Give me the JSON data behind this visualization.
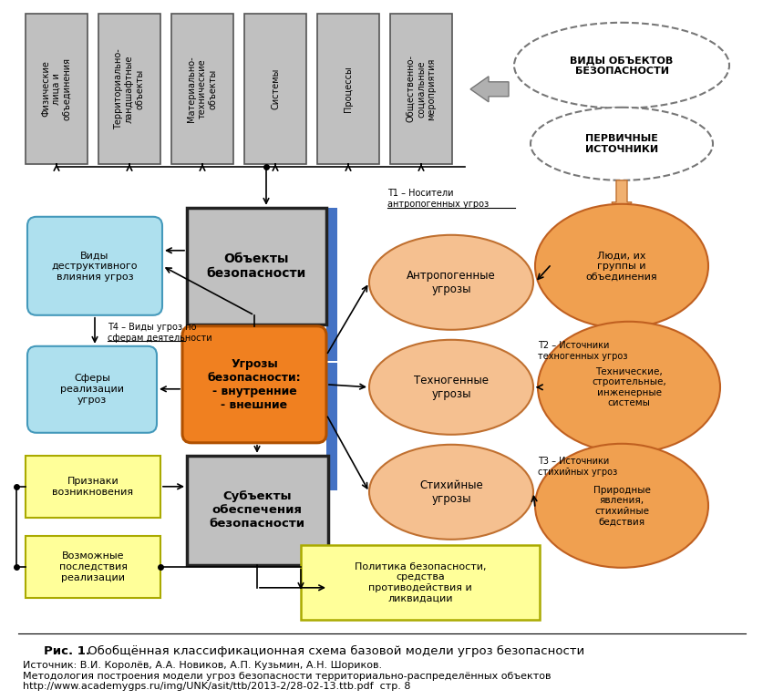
{
  "title_bold": "Рис. 1.",
  "title_rest": " Обобщённая классификационная схема базовой модели угроз безопасности",
  "source_text": "Источник: В.И. Королёв, А.А. Новиков, А.П. Кузьмин, А.Н. Шориков.\nМетодология построения модели угроз безопасности территориально-распределённых объектов\nhttp://www.academygps.ru/img/UNK/asit/ttb/2013-2/28-02-13.ttb.pdf  стр. 8",
  "bg_color": "#ffffff",
  "gray": "#c0c0c0",
  "gray_border": "#555555",
  "blue_accent": "#4472c4",
  "cyan_fill": "#aee0ee",
  "cyan_border": "#4499bb",
  "orange_fill": "#f08020",
  "orange_border": "#b05000",
  "peach_fill": "#f5c090",
  "peach_border": "#c07030",
  "deep_orange_fill": "#f0a050",
  "deep_orange_border": "#c06020",
  "yellow_fill": "#ffff99",
  "yellow_border": "#aaaa00",
  "dashed_border": "#777777",
  "top_labels": [
    "Физические\nлица и\nобъединения",
    "Территориально-\nландшафтные\nобъекты",
    "Материально-\nтехнические\nобъекты",
    "Системы",
    "Процессы",
    "Общественно-\nсоциальные\nмероприятия"
  ]
}
